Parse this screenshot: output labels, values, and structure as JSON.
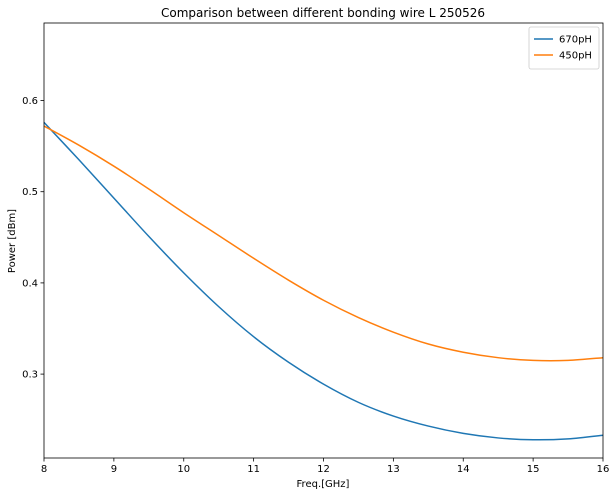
{
  "chart_data": {
    "type": "line",
    "title": "Comparison between different bonding wire L 250526",
    "xlabel": "Freq.[GHz]",
    "ylabel": "Power [dBm]",
    "xlim": [
      8,
      16
    ],
    "ylim": [
      0.208,
      0.685
    ],
    "xticks": [
      8,
      9,
      10,
      11,
      12,
      13,
      14,
      15,
      16
    ],
    "yticks": [
      0.3,
      0.4,
      0.5,
      0.6
    ],
    "xtick_labels": [
      "8",
      "9",
      "10",
      "11",
      "12",
      "13",
      "14",
      "15",
      "16"
    ],
    "ytick_labels": [
      "0.3",
      "0.4",
      "0.5",
      "0.6"
    ],
    "legend_position": "top-right",
    "grid": false,
    "series": [
      {
        "name": "670pH",
        "color": "#1f77b4",
        "x": [
          8,
          8.5,
          9,
          9.5,
          10,
          10.5,
          11,
          11.5,
          12,
          12.5,
          13,
          13.5,
          14,
          14.5,
          15,
          15.5,
          16
        ],
        "values": [
          0.576,
          0.535,
          0.493,
          0.451,
          0.411,
          0.374,
          0.341,
          0.313,
          0.289,
          0.269,
          0.254,
          0.243,
          0.235,
          0.23,
          0.228,
          0.229,
          0.233
        ]
      },
      {
        "name": "450pH",
        "color": "#ff7f0e",
        "x": [
          8,
          8.5,
          9,
          9.5,
          10,
          10.5,
          11,
          11.5,
          12,
          12.5,
          13,
          13.5,
          14,
          14.5,
          15,
          15.5,
          16
        ],
        "values": [
          0.572,
          0.551,
          0.528,
          0.503,
          0.477,
          0.452,
          0.427,
          0.403,
          0.381,
          0.362,
          0.346,
          0.333,
          0.324,
          0.318,
          0.315,
          0.315,
          0.318
        ]
      }
    ]
  }
}
